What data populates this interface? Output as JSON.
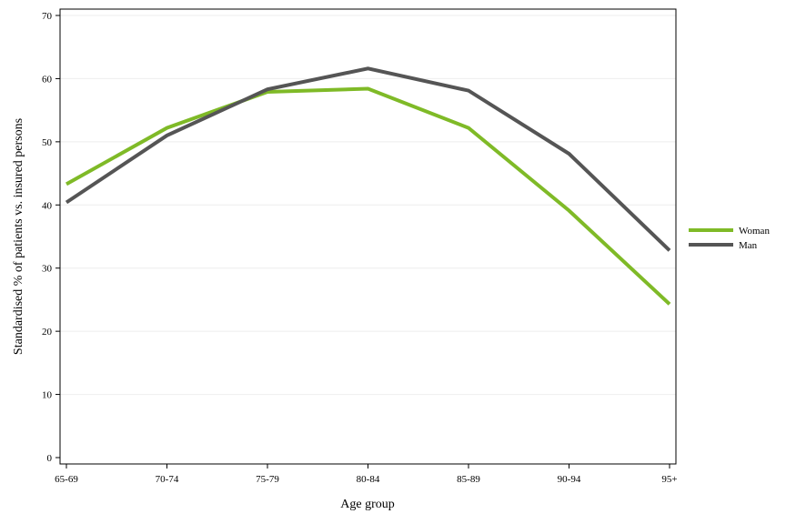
{
  "chart_data": {
    "type": "line",
    "categories": [
      "65-69",
      "70-74",
      "75-79",
      "80-84",
      "85-89",
      "90-94",
      "95+"
    ],
    "series": [
      {
        "name": "Woman",
        "color": "#7fba27",
        "values": [
          43.3,
          52.2,
          57.9,
          58.4,
          52.2,
          39.1,
          24.3
        ]
      },
      {
        "name": "Man",
        "color": "#555555",
        "values": [
          40.4,
          51.0,
          58.3,
          61.6,
          58.1,
          48.1,
          32.8
        ]
      }
    ],
    "xlabel": "Age group",
    "ylabel": "Standardised % of patients vs. insured persons",
    "ylim": [
      0,
      70
    ],
    "yticks": [
      0,
      10,
      20,
      30,
      40,
      50,
      60,
      70
    ],
    "grid": true,
    "legend_position": "right"
  }
}
